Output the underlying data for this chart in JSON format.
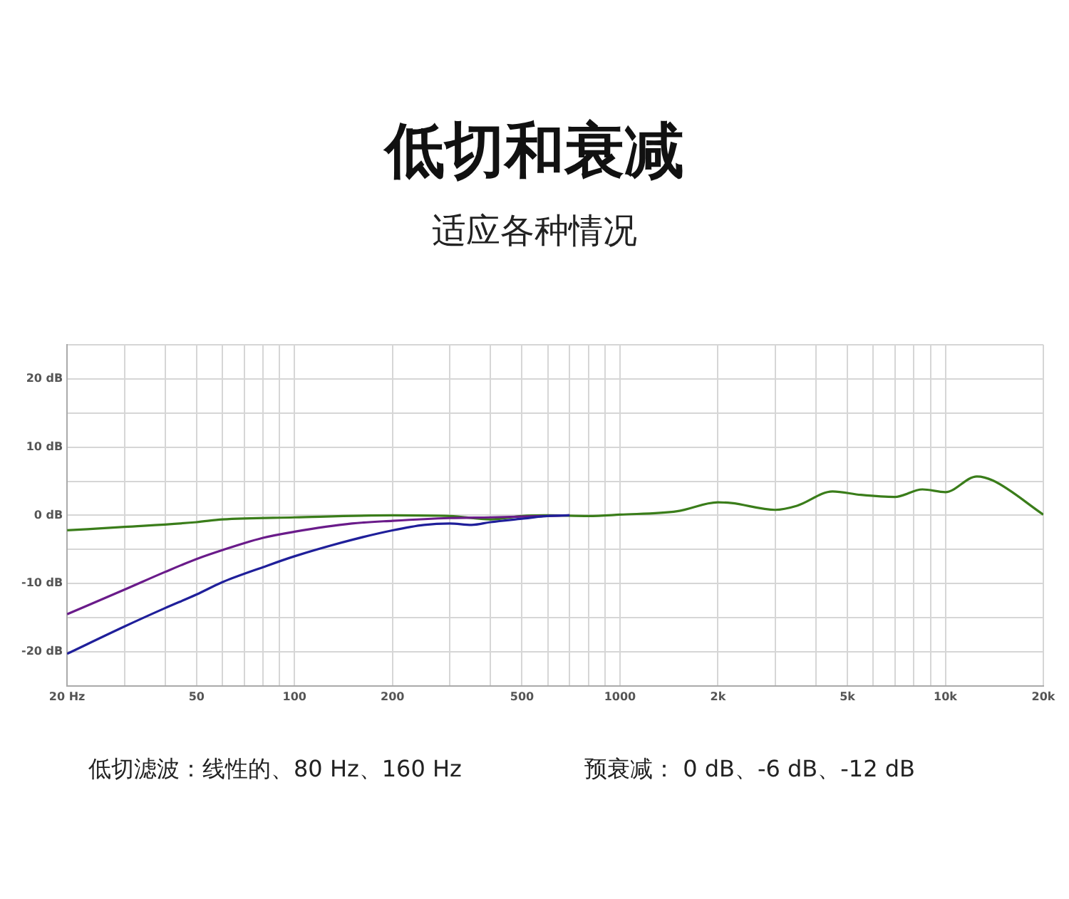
{
  "chart_data": {
    "type": "line",
    "title": "低切和衰减",
    "subtitle": "适应各种情况",
    "annotations": [
      "低切滤波：线性的、80 Hz、160 Hz",
      "预衰减： 0 dB、-6 dB、-12 dB"
    ],
    "log": "x",
    "grid": true,
    "legend": false,
    "marker": "none",
    "line_style": "solid",
    "xlim": [
      20,
      20000
    ],
    "ylim": [
      -25,
      25
    ],
    "xticks": [
      {
        "value": 20,
        "label": "20 Hz"
      },
      {
        "value": 30,
        "label": null
      },
      {
        "value": 40,
        "label": null
      },
      50,
      {
        "value": 60,
        "label": null
      },
      {
        "value": 70,
        "label": null
      },
      {
        "value": 80,
        "label": null
      },
      {
        "value": 90,
        "label": null
      },
      100,
      200,
      {
        "value": 300,
        "label": null
      },
      {
        "value": 400,
        "label": null
      },
      500,
      {
        "value": 600,
        "label": null
      },
      {
        "value": 700,
        "label": null
      },
      {
        "value": 800,
        "label": null
      },
      {
        "value": 900,
        "label": null
      },
      1000,
      {
        "value": 2000,
        "label": "2k"
      },
      {
        "value": 3000,
        "label": null
      },
      {
        "value": 4000,
        "label": null
      },
      {
        "value": 5000,
        "label": "5k"
      },
      {
        "value": 6000,
        "label": null
      },
      {
        "value": 7000,
        "label": null
      },
      {
        "value": 8000,
        "label": null
      },
      {
        "value": 9000,
        "label": null
      },
      {
        "value": 10000,
        "label": "10k"
      },
      {
        "value": 20000,
        "label": "20k"
      }
    ],
    "yticks": [
      {
        "value": -20,
        "label": "-20 dB"
      },
      {
        "value": -15,
        "label": null
      },
      {
        "value": -10,
        "label": "-10 dB"
      },
      {
        "value": -5,
        "label": null
      },
      {
        "value": 0,
        "label": "0 dB"
      },
      {
        "value": 5,
        "label": null
      },
      {
        "value": 10,
        "label": "10 dB"
      },
      {
        "value": 15,
        "label": null
      },
      {
        "value": 20,
        "label": "20 dB"
      },
      {
        "value": 25,
        "label": null
      }
    ],
    "series": [
      {
        "color": "#1f1f9a",
        "x": [
          20,
          30,
          40,
          50,
          60,
          80,
          100,
          150,
          200,
          250,
          300,
          350,
          400,
          500,
          600,
          700
        ],
        "values": [
          -20.3,
          -16.3,
          -13.6,
          -11.6,
          -9.8,
          -7.6,
          -6,
          -3.6,
          -2.2,
          -1.4,
          -1.2,
          -1.4,
          -1,
          -0.5,
          -0.1,
          0
        ]
      },
      {
        "color": "#6a1b8a",
        "x": [
          20,
          30,
          40,
          50,
          60,
          80,
          100,
          150,
          200,
          300,
          400,
          600,
          700
        ],
        "values": [
          -14.5,
          -10.9,
          -8.3,
          -6.4,
          -5.1,
          -3.3,
          -2.4,
          -1.2,
          -0.8,
          -0.4,
          -0.3,
          -0.1,
          0
        ]
      },
      {
        "color": "#3a7d1a",
        "x": [
          20,
          30,
          50,
          60,
          100,
          200,
          300,
          400,
          500,
          600,
          800,
          1000,
          1500,
          2000,
          2200,
          3000,
          3500,
          4500,
          5500,
          7000,
          8500,
          10000,
          12500,
          14000,
          20000
        ],
        "values": [
          -2.2,
          -1.7,
          -1,
          -0.6,
          -0.3,
          0,
          -0.1,
          -0.6,
          -0.1,
          0,
          -0.1,
          0.1,
          0.6,
          1.9,
          1.8,
          0.8,
          1.4,
          3.5,
          3,
          2.7,
          3.8,
          3.4,
          5.7,
          5.1,
          0.1
        ]
      }
    ]
  }
}
